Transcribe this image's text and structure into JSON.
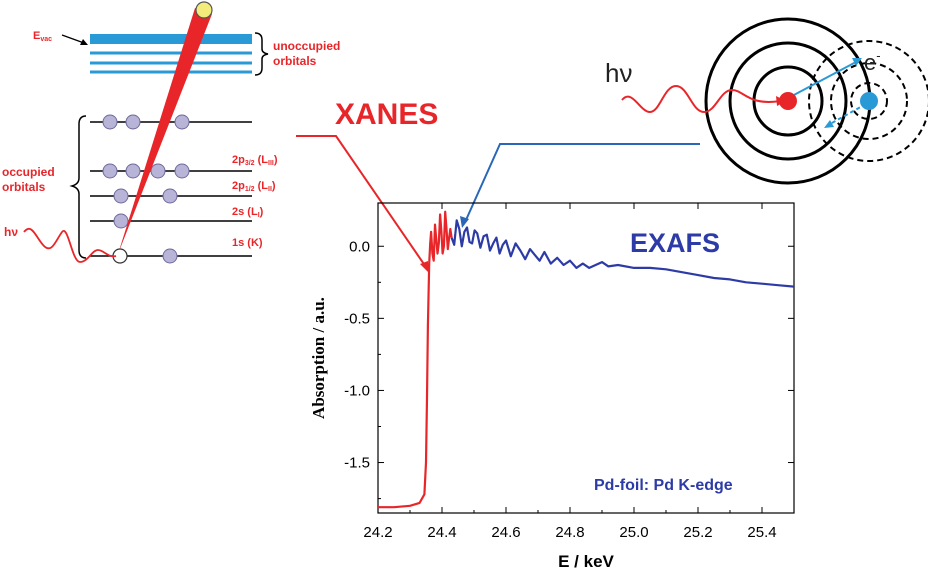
{
  "energy_diagram": {
    "evac_main": "E",
    "evac_sub": "vac",
    "unoccupied_line1": "unoccupied",
    "unoccupied_line2": "orbitals",
    "occupied_line1": "occupied",
    "occupied_line2": "orbitals",
    "photon": "hν",
    "levels": [
      {
        "main": "2p",
        "sub1": "3/2",
        "mid": " (L",
        "sub2": "III",
        "end": ")"
      },
      {
        "main": "2p",
        "sub1": "1/2",
        "mid": " (L",
        "sub2": "II",
        "end": ")"
      },
      {
        "main": "2s",
        "sub1": "",
        "mid": " (L",
        "sub2": "I",
        "end": ")"
      },
      {
        "main": "1s (K)",
        "sub1": "",
        "mid": "",
        "sub2": "",
        "end": ""
      }
    ],
    "colors": {
      "red": "#e8262a",
      "orbital_fill": "#b8b4d8",
      "unoccupied": "#2a9ad6"
    }
  },
  "atom_diagram": {
    "photon": "hν",
    "electron": "e",
    "electron_sup": "-",
    "colors": {
      "absorber": "#e8262a",
      "scatterer": "#2a9ad6"
    }
  },
  "labels": {
    "xanes": "XANES",
    "exafs": "EXAFS",
    "sample": "Pd-foil: Pd K-edge"
  },
  "chart_data": {
    "type": "line",
    "xlabel": "E / keV",
    "ylabel": "Absorption / a.u.",
    "xlim": [
      24.2,
      25.5
    ],
    "ylim": [
      -1.85,
      0.3
    ],
    "xticks": [
      "24.2",
      "24.4",
      "24.6",
      "24.8",
      "25.0",
      "25.2",
      "25.4"
    ],
    "yticks": [
      "0.0",
      "-0.5",
      "-1.0",
      "-1.5"
    ],
    "series": [
      {
        "color": "#e8262a",
        "x": [
          24.2,
          24.25,
          24.3,
          24.33,
          24.345,
          24.35,
          24.353,
          24.356,
          24.36,
          24.363,
          24.366,
          24.37,
          24.374,
          24.378,
          24.382,
          24.386,
          24.39,
          24.394,
          24.398,
          24.402,
          24.406,
          24.41,
          24.414,
          24.418,
          24.422,
          24.426,
          24.43
        ],
        "y": [
          -1.81,
          -1.81,
          -1.8,
          -1.78,
          -1.72,
          -1.5,
          -1.05,
          -0.55,
          -0.12,
          0.02,
          0.1,
          -0.05,
          -0.1,
          0.15,
          0.05,
          -0.05,
          0.02,
          0.22,
          0.1,
          -0.05,
          0.0,
          0.24,
          0.12,
          -0.02,
          0.05,
          0.12,
          0.06
        ]
      },
      {
        "color": "#2d3ba6",
        "x": [
          24.43,
          24.438,
          24.446,
          24.454,
          24.462,
          24.47,
          24.478,
          24.486,
          24.494,
          24.502,
          24.51,
          24.52,
          24.53,
          24.54,
          24.55,
          24.56,
          24.57,
          24.58,
          24.59,
          24.6,
          24.615,
          24.63,
          24.645,
          24.66,
          24.675,
          24.69,
          24.705,
          24.72,
          24.74,
          24.76,
          24.78,
          24.8,
          24.82,
          24.84,
          24.86,
          24.88,
          24.9,
          24.92,
          24.95,
          25.0,
          25.05,
          25.1,
          25.15,
          25.2,
          25.25,
          25.3,
          25.35,
          25.4,
          25.45,
          25.5
        ],
        "y": [
          0.06,
          0.01,
          0.18,
          0.12,
          0.0,
          0.1,
          0.13,
          0.03,
          0.02,
          0.11,
          0.09,
          -0.01,
          0.07,
          0.08,
          -0.03,
          0.02,
          0.06,
          -0.05,
          0.01,
          0.04,
          -0.07,
          0.02,
          -0.03,
          -0.09,
          -0.02,
          -0.06,
          -0.1,
          -0.04,
          -0.12,
          -0.08,
          -0.13,
          -0.1,
          -0.15,
          -0.12,
          -0.15,
          -0.13,
          -0.11,
          -0.14,
          -0.13,
          -0.15,
          -0.15,
          -0.16,
          -0.18,
          -0.2,
          -0.22,
          -0.23,
          -0.25,
          -0.26,
          -0.27,
          -0.28
        ]
      }
    ]
  }
}
